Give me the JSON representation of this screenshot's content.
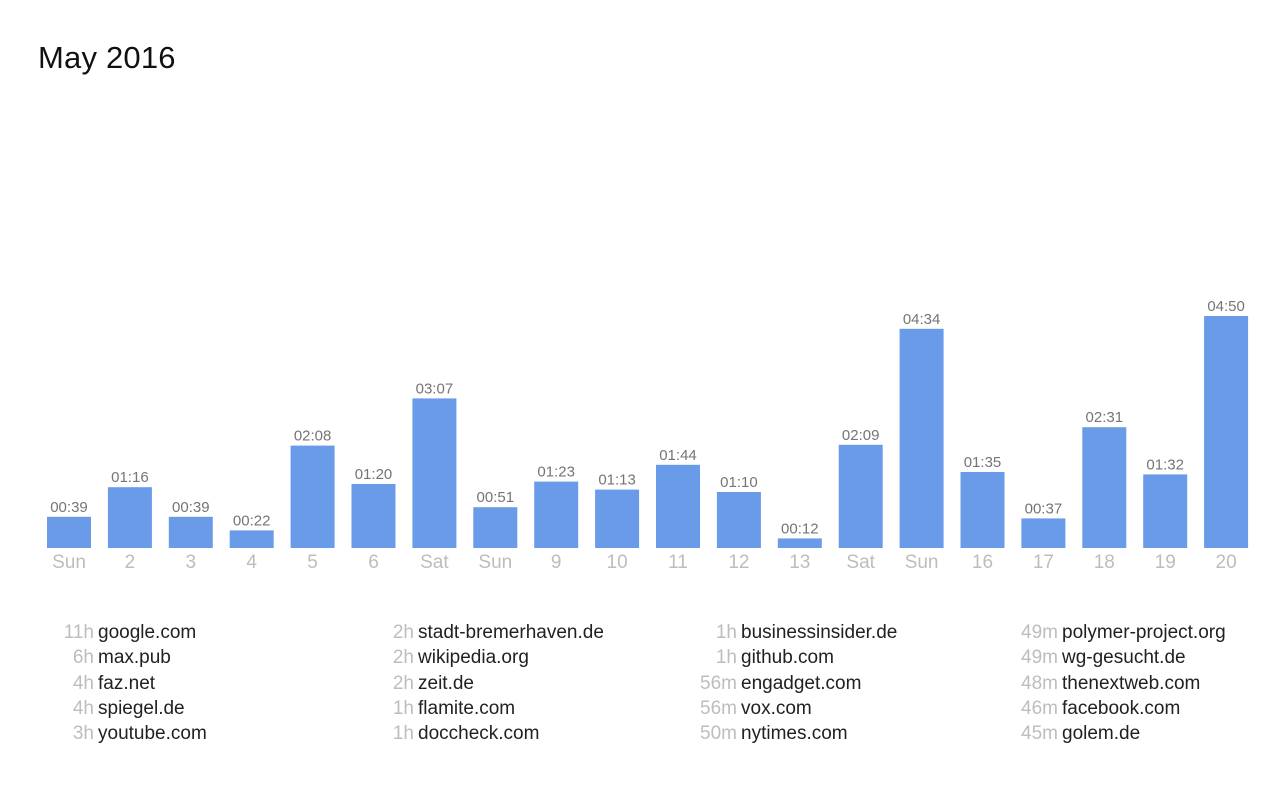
{
  "header": {
    "title": "May 2016"
  },
  "colors": {
    "bar": "#6a9be9",
    "value_label": "#757575",
    "tick_label": "#bdbdbd",
    "site_time": "#bdbdbd",
    "site_domain": "#212121"
  },
  "chart_data": {
    "type": "bar",
    "title": "May 2016",
    "xlabel": "",
    "ylabel": "",
    "unit": "hh:mm",
    "grid": false,
    "categories": [
      "Sun",
      "2",
      "3",
      "4",
      "5",
      "6",
      "Sat",
      "Sun",
      "9",
      "10",
      "11",
      "12",
      "13",
      "Sat",
      "Sun",
      "16",
      "17",
      "18",
      "19",
      "20"
    ],
    "value_labels": [
      "00:39",
      "01:16",
      "00:39",
      "00:22",
      "02:08",
      "01:20",
      "03:07",
      "00:51",
      "01:23",
      "01:13",
      "01:44",
      "01:10",
      "00:12",
      "02:09",
      "04:34",
      "01:35",
      "00:37",
      "02:31",
      "01:32",
      "04:50"
    ],
    "values": [
      39,
      76,
      39,
      22,
      128,
      80,
      187,
      51,
      83,
      73,
      104,
      70,
      12,
      129,
      274,
      95,
      37,
      151,
      92,
      290
    ],
    "value_unit": "minutes",
    "weekend_categories": [
      "Sun",
      "Sat"
    ]
  },
  "top_sites": {
    "columns": [
      [
        {
          "time": "11h",
          "domain": "google.com"
        },
        {
          "time": "6h",
          "domain": "max.pub"
        },
        {
          "time": "4h",
          "domain": "faz.net"
        },
        {
          "time": "4h",
          "domain": "spiegel.de"
        },
        {
          "time": "3h",
          "domain": "youtube.com"
        }
      ],
      [
        {
          "time": "2h",
          "domain": "stadt-bremerhaven.de"
        },
        {
          "time": "2h",
          "domain": "wikipedia.org"
        },
        {
          "time": "2h",
          "domain": "zeit.de"
        },
        {
          "time": "1h",
          "domain": "flamite.com"
        },
        {
          "time": "1h",
          "domain": "doccheck.com"
        }
      ],
      [
        {
          "time": "1h",
          "domain": "businessinsider.de"
        },
        {
          "time": "1h",
          "domain": "github.com"
        },
        {
          "time": "56m",
          "domain": "engadget.com"
        },
        {
          "time": "56m",
          "domain": "vox.com"
        },
        {
          "time": "50m",
          "domain": "nytimes.com"
        }
      ],
      [
        {
          "time": "49m",
          "domain": "polymer-project.org"
        },
        {
          "time": "49m",
          "domain": "wg-gesucht.de"
        },
        {
          "time": "48m",
          "domain": "thenextweb.com"
        },
        {
          "time": "46m",
          "domain": "facebook.com"
        },
        {
          "time": "45m",
          "domain": "golem.de"
        }
      ]
    ]
  }
}
